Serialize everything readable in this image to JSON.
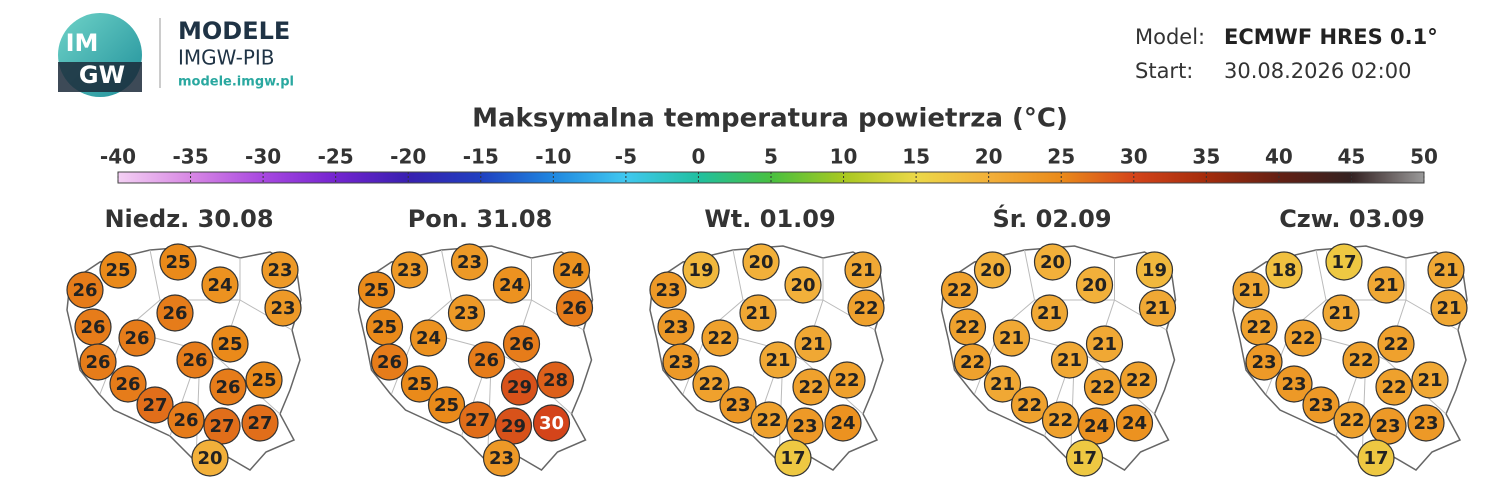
{
  "header": {
    "logo_text": [
      "IM",
      "GW"
    ],
    "brand": "MODELE",
    "institute": "IMGW-PIB",
    "url": "modele.imgw.pl",
    "model_label": "Model:",
    "model_value": "ECMWF HRES 0.1°",
    "start_label": "Start:",
    "start_value": "30.08.2026 02:00"
  },
  "title": "Maksymalna temperatura powietrza (°C)",
  "colorbar": {
    "ticks": [
      -40,
      -35,
      -30,
      -25,
      -20,
      -15,
      -10,
      -5,
      0,
      5,
      10,
      15,
      20,
      25,
      30,
      35,
      40,
      45,
      50
    ],
    "colors": [
      "#f4d0f4",
      "#d888e4",
      "#a848e0",
      "#7424d0",
      "#3820b0",
      "#2040c0",
      "#2088e0",
      "#40c8f0",
      "#20c0a0",
      "#48c040",
      "#a8c820",
      "#ecd848",
      "#f2b03a",
      "#ea8a1a",
      "#d4441a",
      "#a42c0c",
      "#642014",
      "#342222",
      "#9a9a9a"
    ]
  },
  "days": [
    {
      "title": "Niedz. 30.08",
      "values": [
        25,
        25,
        24,
        23,
        26,
        23,
        26,
        26,
        26,
        25,
        26,
        26,
        25,
        26,
        26,
        27,
        26,
        27,
        27,
        20
      ]
    },
    {
      "title": "Pon. 31.08",
      "values": [
        23,
        23,
        24,
        24,
        25,
        26,
        23,
        25,
        24,
        26,
        26,
        26,
        28,
        25,
        29,
        25,
        27,
        29,
        30,
        23
      ]
    },
    {
      "title": "Wt. 01.09",
      "values": [
        19,
        20,
        20,
        21,
        23,
        22,
        21,
        23,
        22,
        21,
        23,
        21,
        22,
        22,
        22,
        23,
        22,
        23,
        24,
        17
      ]
    },
    {
      "title": "Śr. 02.09",
      "values": [
        20,
        20,
        20,
        19,
        22,
        21,
        21,
        22,
        21,
        21,
        22,
        21,
        22,
        21,
        22,
        22,
        22,
        24,
        24,
        17
      ]
    },
    {
      "title": "Czw. 03.09",
      "values": [
        18,
        17,
        21,
        21,
        21,
        21,
        21,
        22,
        22,
        22,
        23,
        22,
        21,
        23,
        22,
        23,
        22,
        23,
        23,
        17
      ]
    }
  ]
}
